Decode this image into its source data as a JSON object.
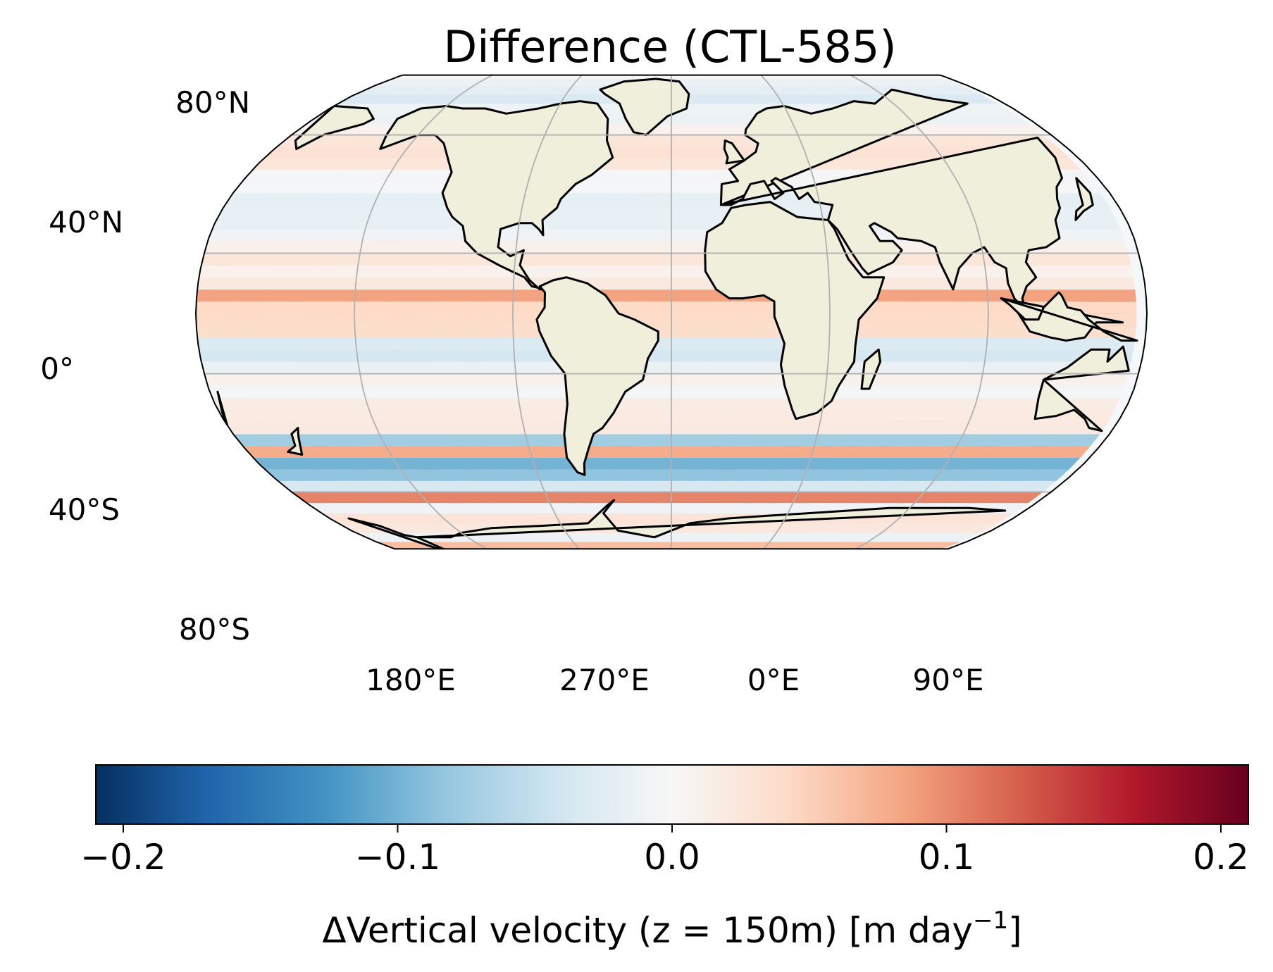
{
  "title": "Difference (CTL-585)",
  "map": {
    "projection": "robinson",
    "land_color": "#efefdb",
    "coastline_color": "#000000",
    "gridline_color": "#b0b0b0",
    "lat_labels": [
      "80°N",
      "40°N",
      "0°",
      "40°S",
      "80°S"
    ],
    "lon_labels": [
      "180°E",
      "270°E",
      "0°E",
      "90°E"
    ]
  },
  "colorbar": {
    "colormap": "RdBu_r",
    "min": -0.21,
    "max": 0.21,
    "tick_values": [
      -0.2,
      -0.1,
      0.0,
      0.1,
      0.2
    ],
    "tick_labels": [
      "−0.2",
      "−0.1",
      "0.0",
      "0.1",
      "0.2"
    ],
    "label_main": "ΔVertical velocity (z = 150m) [m day",
    "label_sup": "−1",
    "label_end": "]",
    "colors": [
      "#053061",
      "#2166ac",
      "#4393c3",
      "#92c5de",
      "#d1e5f0",
      "#f7f7f7",
      "#fddbc7",
      "#f4a582",
      "#d6604d",
      "#b2182b",
      "#67001f"
    ]
  }
}
